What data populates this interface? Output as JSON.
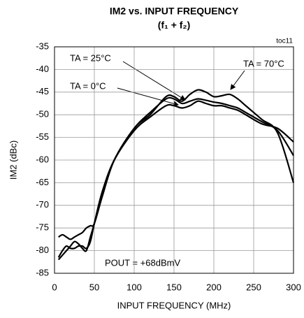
{
  "chart_data": {
    "type": "line",
    "title": "IM2 vs. INPUT FREQUENCY",
    "subtitle": "(f₁ + f₂)",
    "x_label": "INPUT FREQUENCY (MHz)",
    "y_label": "IM2 (dBc)",
    "annotations": [
      "toc11",
      "POUT = +68dBmV"
    ],
    "x": [
      5,
      10,
      15,
      20,
      25,
      30,
      35,
      40,
      45,
      50,
      60,
      75,
      100,
      120,
      140,
      150,
      160,
      170,
      180,
      190,
      200,
      210,
      220,
      230,
      240,
      260,
      280,
      300
    ],
    "series": [
      {
        "name": "TA = 70°C",
        "color": "#000000",
        "values": [
          -77,
          -76.5,
          -77,
          -77.5,
          -77,
          -76.5,
          -76,
          -75,
          -74.5,
          -74,
          -68,
          -60,
          -53,
          -50,
          -46,
          -46,
          -47,
          -45.5,
          -44.5,
          -45,
          -46,
          -45.8,
          -45.5,
          -46.5,
          -48,
          -51,
          -54,
          -65
        ]
      },
      {
        "name": "TA = 25°C",
        "color": "#000000",
        "values": [
          -81.5,
          -80,
          -79,
          -79.5,
          -79.5,
          -79,
          -79,
          -79.5,
          -78,
          -74,
          -67,
          -60,
          -53,
          -49.5,
          -46.5,
          -46.5,
          -47.5,
          -47,
          -46.5,
          -46.8,
          -47.2,
          -47.5,
          -48,
          -48.5,
          -49.5,
          -51.5,
          -53.5,
          -59
        ]
      },
      {
        "name": "TA = 0°C",
        "color": "#000000",
        "values": [
          -82,
          -81,
          -80,
          -79,
          -78,
          -78.5,
          -79.5,
          -80,
          -77,
          -74,
          -67,
          -60,
          -53.5,
          -50.5,
          -48,
          -48,
          -48.5,
          -48,
          -47,
          -47.5,
          -48,
          -48,
          -48.5,
          -49,
          -50,
          -52,
          -53,
          -56
        ]
      }
    ],
    "xlim": [
      0,
      300
    ],
    "xticks": [
      0,
      50,
      100,
      150,
      200,
      250,
      300
    ],
    "ylim": [
      -85,
      -35
    ],
    "yticks": [
      -35,
      -40,
      -45,
      -50,
      -55,
      -60,
      -65,
      -70,
      -75,
      -80,
      -85
    ],
    "grid": true
  }
}
